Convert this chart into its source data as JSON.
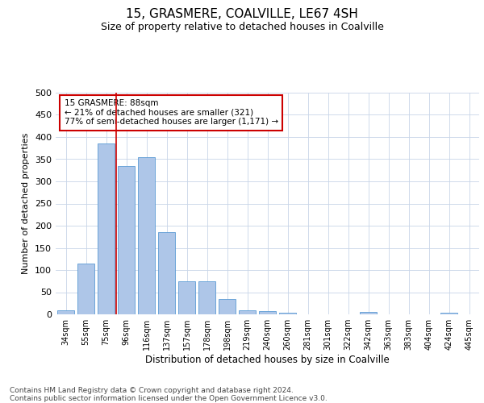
{
  "title": "15, GRASMERE, COALVILLE, LE67 4SH",
  "subtitle": "Size of property relative to detached houses in Coalville",
  "xlabel": "Distribution of detached houses by size in Coalville",
  "ylabel": "Number of detached properties",
  "bar_labels": [
    "34sqm",
    "55sqm",
    "75sqm",
    "96sqm",
    "116sqm",
    "137sqm",
    "157sqm",
    "178sqm",
    "198sqm",
    "219sqm",
    "240sqm",
    "260sqm",
    "281sqm",
    "301sqm",
    "322sqm",
    "342sqm",
    "363sqm",
    "383sqm",
    "404sqm",
    "424sqm",
    "445sqm"
  ],
  "bar_values": [
    10,
    115,
    385,
    335,
    355,
    185,
    75,
    75,
    35,
    10,
    8,
    4,
    0,
    0,
    0,
    5,
    0,
    0,
    0,
    4,
    0
  ],
  "bar_color": "#aec6e8",
  "bar_edgecolor": "#5b9bd5",
  "vline_x": 2.5,
  "vline_color": "#cc0000",
  "annotation_text": "15 GRASMERE: 88sqm\n← 21% of detached houses are smaller (321)\n77% of semi-detached houses are larger (1,171) →",
  "annotation_box_color": "#cc0000",
  "ylim": [
    0,
    500
  ],
  "yticks": [
    0,
    50,
    100,
    150,
    200,
    250,
    300,
    350,
    400,
    450,
    500
  ],
  "grid_color": "#c8d4e8",
  "background_color": "#ffffff",
  "footer_text": "Contains HM Land Registry data © Crown copyright and database right 2024.\nContains public sector information licensed under the Open Government Licence v3.0.",
  "title_fontsize": 11,
  "subtitle_fontsize": 9,
  "annotation_fontsize": 7.5,
  "footer_fontsize": 6.5,
  "ylabel_fontsize": 8,
  "xlabel_fontsize": 8.5,
  "xtick_fontsize": 7,
  "ytick_fontsize": 8
}
